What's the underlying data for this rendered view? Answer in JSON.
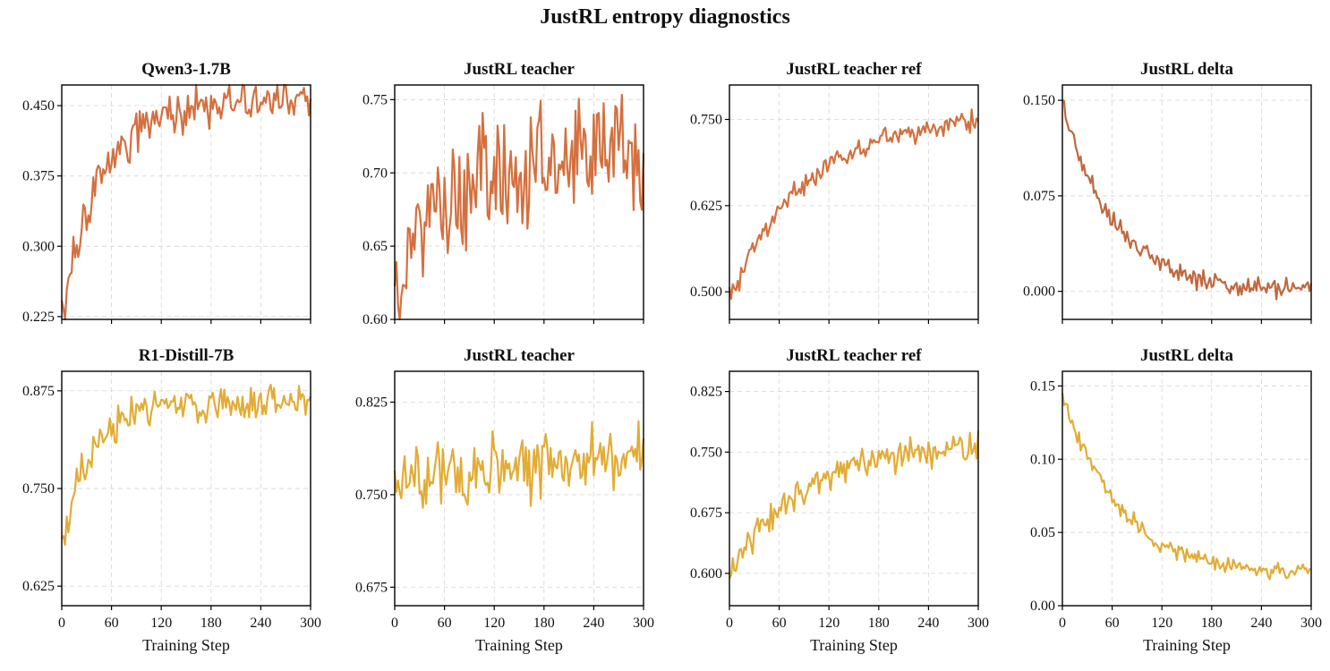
{
  "figure": {
    "title": "JustRL entropy diagnostics"
  },
  "colors": {
    "row1": "#d4703f",
    "row1_delta": "#c0683e",
    "row2": "#e2ac35",
    "grid": "#d9d9d9"
  },
  "x_label": "Training Step",
  "chart_data": [
    {
      "id": "p11",
      "type": "line",
      "title": "Qwen3-1.7B",
      "row": 0,
      "col": 0,
      "color": "#d4703f",
      "xlim": [
        0,
        300
      ],
      "ylim": [
        0.222,
        0.472
      ],
      "xticks": [
        0,
        60,
        120,
        180,
        240,
        300
      ],
      "yticks": [
        0.225,
        0.3,
        0.375,
        0.45
      ],
      "ytick_labels": [
        "0.225",
        "0.300",
        "0.375",
        "0.450"
      ],
      "series": [
        {
          "gen": {
            "kind": "sat",
            "start": 0.225,
            "end": 0.455,
            "tau": 45,
            "noise": 0.012,
            "seed": 11
          }
        }
      ]
    },
    {
      "id": "p12",
      "type": "line",
      "title": "JustRL teacher",
      "row": 0,
      "col": 1,
      "color": "#d4703f",
      "xlim": [
        0,
        300
      ],
      "ylim": [
        0.6,
        0.76
      ],
      "xticks": [
        0,
        60,
        120,
        180,
        240,
        300
      ],
      "yticks": [
        0.6,
        0.65,
        0.7,
        0.75
      ],
      "ytick_labels": [
        "0.60",
        "0.65",
        "0.70",
        "0.75"
      ],
      "series": [
        {
          "gen": {
            "kind": "sat",
            "start": 0.63,
            "end": 0.712,
            "tau": 70,
            "noise": 0.02,
            "seed": 12
          }
        }
      ]
    },
    {
      "id": "p13",
      "type": "line",
      "title": "JustRL teacher ref",
      "row": 0,
      "col": 2,
      "color": "#d4703f",
      "xlim": [
        0,
        300
      ],
      "ylim": [
        0.46,
        0.8
      ],
      "xticks": [
        0,
        60,
        120,
        180,
        240,
        300
      ],
      "yticks": [
        0.5,
        0.625,
        0.75
      ],
      "ytick_labels": [
        "0.500",
        "0.625",
        "0.750"
      ],
      "series": [
        {
          "gen": {
            "kind": "sat",
            "start": 0.49,
            "end": 0.76,
            "tau": 95,
            "noise": 0.009,
            "seed": 13
          }
        }
      ]
    },
    {
      "id": "p14",
      "type": "line",
      "title": "JustRL delta",
      "row": 0,
      "col": 3,
      "color": "#c0683e",
      "xlim": [
        0,
        300
      ],
      "ylim": [
        -0.022,
        0.162
      ],
      "xticks": [
        0,
        60,
        120,
        180,
        240,
        300
      ],
      "yticks": [
        0,
        0.075,
        0.15
      ],
      "ytick_labels": [
        "0.000",
        "0.075",
        "0.150"
      ],
      "series": [
        {
          "gen": {
            "kind": "sat",
            "start": 0.15,
            "end": 0.0,
            "tau": 62,
            "noise": 0.004,
            "seed": 14
          }
        }
      ]
    },
    {
      "id": "p21",
      "type": "line",
      "title": "R1-Distill-7B",
      "row": 1,
      "col": 0,
      "color": "#e2ac35",
      "xlim": [
        0,
        300
      ],
      "ylim": [
        0.6,
        0.9
      ],
      "xticks": [
        0,
        60,
        120,
        180,
        240,
        300
      ],
      "yticks": [
        0.625,
        0.75,
        0.875
      ],
      "ytick_labels": [
        "0.625",
        "0.750",
        "0.875"
      ],
      "series": [
        {
          "gen": {
            "kind": "sat",
            "start": 0.68,
            "end": 0.86,
            "tau": 35,
            "noise": 0.012,
            "seed": 21
          }
        }
      ]
    },
    {
      "id": "p22",
      "type": "line",
      "title": "JustRL teacher",
      "row": 1,
      "col": 1,
      "color": "#e2ac35",
      "xlim": [
        0,
        300
      ],
      "ylim": [
        0.66,
        0.85
      ],
      "xticks": [
        0,
        60,
        120,
        180,
        240,
        300
      ],
      "yticks": [
        0.675,
        0.75,
        0.825
      ],
      "ytick_labels": [
        "0.675",
        "0.750",
        "0.825"
      ],
      "series": [
        {
          "gen": {
            "kind": "sat",
            "start": 0.76,
            "end": 0.785,
            "tau": 150,
            "noise": 0.013,
            "seed": 22
          }
        }
      ]
    },
    {
      "id": "p23",
      "type": "line",
      "title": "JustRL teacher ref",
      "row": 1,
      "col": 2,
      "color": "#e2ac35",
      "xlim": [
        0,
        300
      ],
      "ylim": [
        0.56,
        0.85
      ],
      "xticks": [
        0,
        60,
        120,
        180,
        240,
        300
      ],
      "yticks": [
        0.6,
        0.675,
        0.75,
        0.825
      ],
      "ytick_labels": [
        "0.600",
        "0.675",
        "0.750",
        "0.825"
      ],
      "series": [
        {
          "gen": {
            "kind": "sat",
            "start": 0.6,
            "end": 0.76,
            "tau": 85,
            "noise": 0.01,
            "seed": 23
          }
        }
      ]
    },
    {
      "id": "p24",
      "type": "line",
      "title": "JustRL delta",
      "row": 1,
      "col": 3,
      "color": "#e2ac35",
      "xlim": [
        0,
        300
      ],
      "ylim": [
        0,
        0.16
      ],
      "xticks": [
        0,
        60,
        120,
        180,
        240,
        300
      ],
      "yticks": [
        0,
        0.05,
        0.1,
        0.15
      ],
      "ytick_labels": [
        "0.00",
        "0.05",
        "0.10",
        "0.15"
      ],
      "series": [
        {
          "gen": {
            "kind": "sat",
            "start": 0.145,
            "end": 0.02,
            "tau": 70,
            "noise": 0.003,
            "seed": 24
          }
        }
      ]
    }
  ]
}
